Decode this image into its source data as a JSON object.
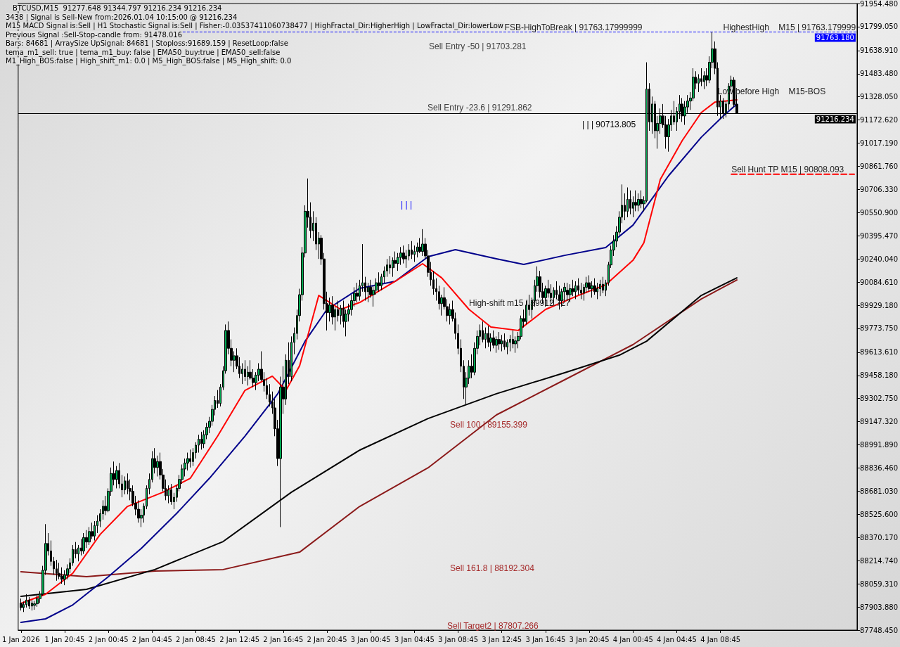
{
  "chart_data": {
    "type": "candlestick",
    "title": "BTCUSD,M15  91277.648 91344.797 91216.234 91216.234",
    "x": [
      "2026-01-01T16:45",
      "2026-01-01T17:00",
      "2026-01-01T17:15",
      "2026-01-01T17:30",
      "2026-01-01T17:45",
      "2026-01-01T18:00",
      "2026-01-01T18:15",
      "2026-01-01T18:30",
      "2026-01-01T18:45",
      "2026-01-01T19:00",
      "2026-01-01T19:15",
      "2026-01-01T19:30",
      "2026-01-01T19:45",
      "2026-01-01T20:00",
      "2026-01-01T20:15",
      "2026-01-01T20:30",
      "2026-01-01T20:45",
      "2026-01-01T21:00",
      "2026-01-01T21:15",
      "2026-01-01T21:30",
      "2026-01-01T21:45",
      "2026-01-01T22:00",
      "2026-01-01T22:15",
      "2026-01-01T22:30",
      "2026-01-01T22:45",
      "2026-01-01T23:00",
      "2026-01-01T23:15",
      "2026-01-01T23:30",
      "2026-01-01T23:45",
      "2026-01-02T00:00",
      "2026-01-02T00:15",
      "2026-01-02T00:30",
      "2026-01-02T00:45",
      "2026-01-02T01:00",
      "2026-01-02T01:15",
      "2026-01-02T01:30",
      "2026-01-02T01:45",
      "2026-01-02T02:00",
      "2026-01-02T02:15",
      "2026-01-02T02:30",
      "2026-01-02T02:45",
      "2026-01-02T03:00",
      "2026-01-02T03:15",
      "2026-01-02T03:30",
      "2026-01-02T03:45",
      "2026-01-02T04:00",
      "2026-01-02T04:15",
      "2026-01-02T04:30",
      "2026-01-02T04:45",
      "2026-01-02T05:00",
      "2026-01-02T05:15",
      "2026-01-02T05:30",
      "2026-01-02T05:45",
      "2026-01-02T06:00",
      "2026-01-02T06:15",
      "2026-01-02T06:30",
      "2026-01-02T06:45",
      "2026-01-02T07:00",
      "2026-01-02T07:15",
      "2026-01-02T07:30",
      "2026-01-02T07:45",
      "2026-01-02T08:00",
      "2026-01-02T08:15",
      "2026-01-02T08:30",
      "2026-01-02T08:45",
      "2026-01-02T09:00",
      "2026-01-02T09:15",
      "2026-01-02T09:30",
      "2026-01-02T09:45",
      "2026-01-02T10:00",
      "2026-01-02T10:15",
      "2026-01-02T10:30",
      "2026-01-02T10:45",
      "2026-01-02T11:00",
      "2026-01-02T11:15",
      "2026-01-02T11:30",
      "2026-01-02T11:45",
      "2026-01-02T12:00",
      "2026-01-02T12:15",
      "2026-01-02T12:30",
      "2026-01-02T12:45",
      "2026-01-02T13:00",
      "2026-01-02T13:15",
      "2026-01-02T13:30",
      "2026-01-02T13:45",
      "2026-01-02T14:00",
      "2026-01-02T14:15",
      "2026-01-02T14:30",
      "2026-01-02T14:45",
      "2026-01-02T15:00",
      "2026-01-02T15:15",
      "2026-01-02T15:30",
      "2026-01-02T15:45",
      "2026-01-02T16:00",
      "2026-01-02T16:15",
      "2026-01-02T16:30",
      "2026-01-02T16:45",
      "2026-01-02T17:00",
      "2026-01-02T17:15",
      "2026-01-02T17:30",
      "2026-01-02T17:45",
      "2026-01-02T18:00",
      "2026-01-02T18:15",
      "2026-01-02T18:30",
      "2026-01-02T18:45",
      "2026-01-02T19:00",
      "2026-01-02T19:15",
      "2026-01-02T19:30",
      "2026-01-02T19:45",
      "2026-01-02T20:00",
      "2026-01-02T20:15",
      "2026-01-02T20:30",
      "2026-01-02T20:45",
      "2026-01-02T21:00",
      "2026-01-02T21:15",
      "2026-01-02T21:30",
      "2026-01-02T21:45",
      "2026-01-02T22:00",
      "2026-01-02T22:15",
      "2026-01-02T22:30",
      "2026-01-02T22:45",
      "2026-01-02T23:00",
      "2026-01-02T23:15",
      "2026-01-02T23:30",
      "2026-01-02T23:45",
      "2026-01-03T00:00",
      "2026-01-03T00:15",
      "2026-01-03T00:30",
      "2026-01-03T00:45",
      "2026-01-03T01:00",
      "2026-01-03T01:15",
      "2026-01-03T01:30",
      "2026-01-03T01:45",
      "2026-01-03T02:00",
      "2026-01-03T02:15",
      "2026-01-03T02:30",
      "2026-01-03T02:45",
      "2026-01-03T03:00",
      "2026-01-03T03:15",
      "2026-01-03T03:30",
      "2026-01-03T03:45",
      "2026-01-03T04:00",
      "2026-01-03T04:15",
      "2026-01-03T04:30",
      "2026-01-03T04:45",
      "2026-01-03T05:00",
      "2026-01-03T05:15",
      "2026-01-03T05:30",
      "2026-01-03T05:45",
      "2026-01-03T06:00",
      "2026-01-03T06:15",
      "2026-01-03T06:30",
      "2026-01-03T06:45",
      "2026-01-03T07:00",
      "2026-01-03T07:15",
      "2026-01-03T07:30",
      "2026-01-03T07:45",
      "2026-01-03T08:00",
      "2026-01-03T08:15",
      "2026-01-03T08:30",
      "2026-01-03T08:45",
      "2026-01-03T09:00",
      "2026-01-03T09:15",
      "2026-01-03T09:30",
      "2026-01-03T09:45",
      "2026-01-03T10:00",
      "2026-01-03T10:15",
      "2026-01-03T10:30",
      "2026-01-03T10:45",
      "2026-01-03T11:00",
      "2026-01-03T11:15",
      "2026-01-03T11:30",
      "2026-01-03T11:45",
      "2026-01-03T12:00",
      "2026-01-03T12:15",
      "2026-01-03T12:30",
      "2026-01-03T12:45",
      "2026-01-03T13:00",
      "2026-01-03T13:15",
      "2026-01-03T13:30",
      "2026-01-03T13:45",
      "2026-01-03T14:00",
      "2026-01-03T14:15",
      "2026-01-03T14:30",
      "2026-01-03T14:45",
      "2026-01-03T15:00",
      "2026-01-03T15:15",
      "2026-01-03T15:30",
      "2026-01-03T15:45",
      "2026-01-03T16:00",
      "2026-01-03T16:15",
      "2026-01-03T16:30",
      "2026-01-03T16:45",
      "2026-01-03T17:00",
      "2026-01-03T17:15",
      "2026-01-03T17:30",
      "2026-01-03T17:45",
      "2026-01-03T18:00",
      "2026-01-03T18:15",
      "2026-01-03T18:30",
      "2026-01-03T18:45",
      "2026-01-03T19:00",
      "2026-01-03T19:15",
      "2026-01-03T19:30",
      "2026-01-03T19:45",
      "2026-01-03T20:00",
      "2026-01-03T20:15",
      "2026-01-03T20:30",
      "2026-01-03T20:45",
      "2026-01-03T21:00",
      "2026-01-03T21:15",
      "2026-01-03T21:30",
      "2026-01-03T21:45",
      "2026-01-03T22:00",
      "2026-01-03T22:15",
      "2026-01-03T22:30",
      "2026-01-03T22:45",
      "2026-01-03T23:00",
      "2026-01-03T23:15",
      "2026-01-03T23:30",
      "2026-01-03T23:45",
      "2026-01-04T00:00",
      "2026-01-04T00:15",
      "2026-01-04T00:30",
      "2026-01-04T00:45",
      "2026-01-04T01:00",
      "2026-01-04T01:15",
      "2026-01-04T01:30",
      "2026-01-04T01:45",
      "2026-01-04T02:00",
      "2026-01-04T02:15",
      "2026-01-04T02:30",
      "2026-01-04T02:45",
      "2026-01-04T03:00",
      "2026-01-04T03:15",
      "2026-01-04T03:30",
      "2026-01-04T03:45",
      "2026-01-04T04:00",
      "2026-01-04T04:15",
      "2026-01-04T04:30",
      "2026-01-04T04:45",
      "2026-01-04T05:00",
      "2026-01-04T05:15",
      "2026-01-04T05:30",
      "2026-01-04T05:45",
      "2026-01-04T06:00",
      "2026-01-04T06:15",
      "2026-01-04T06:30",
      "2026-01-04T06:45",
      "2026-01-04T07:00",
      "2026-01-04T07:15",
      "2026-01-04T07:30",
      "2026-01-04T07:45",
      "2026-01-04T08:00",
      "2026-01-04T08:15",
      "2026-01-04T08:30",
      "2026-01-04T08:45",
      "2026-01-04T09:00",
      "2026-01-04T09:15",
      "2026-01-04T09:30",
      "2026-01-04T09:45",
      "2026-01-04T10:00",
      "2026-01-04T10:15"
    ],
    "ohlc": [
      [
        87930,
        87960,
        87880,
        87900
      ],
      [
        87900,
        87940,
        87870,
        87920
      ],
      [
        87920,
        87990,
        87900,
        87950
      ],
      [
        87950,
        87970,
        87890,
        87910
      ],
      [
        87910,
        87950,
        87880,
        87930
      ],
      [
        87915,
        87945,
        87885,
        87925
      ],
      [
        87925,
        87980,
        87905,
        87960
      ],
      [
        87960,
        88010,
        87930,
        87990
      ],
      [
        87990,
        88180,
        87980,
        88150
      ],
      [
        88150,
        88460,
        88120,
        88330
      ],
      [
        88330,
        88400,
        88250,
        88280
      ],
      [
        88280,
        88350,
        88180,
        88210
      ],
      [
        88210,
        88240,
        88120,
        88160
      ],
      [
        88160,
        88220,
        88080,
        88130
      ],
      [
        88130,
        88200,
        88090,
        88110
      ],
      [
        88110,
        88170,
        88060,
        88090
      ],
      [
        88090,
        88150,
        88050,
        88120
      ],
      [
        88120,
        88190,
        88090,
        88160
      ],
      [
        88160,
        88230,
        88130,
        88200
      ],
      [
        88200,
        88320,
        88180,
        88290
      ],
      [
        88290,
        88340,
        88230,
        88260
      ],
      [
        88260,
        88320,
        88210,
        88300
      ],
      [
        88300,
        88360,
        88250,
        88280
      ],
      [
        88280,
        88400,
        88260,
        88370
      ],
      [
        88370,
        88420,
        88300,
        88340
      ],
      [
        88340,
        88440,
        88320,
        88410
      ],
      [
        88410,
        88470,
        88360,
        88380
      ],
      [
        88380,
        88480,
        88350,
        88450
      ],
      [
        88450,
        88520,
        88400,
        88480
      ],
      [
        88480,
        88560,
        88440,
        88530
      ],
      [
        88530,
        88620,
        88490,
        88580
      ],
      [
        88580,
        88650,
        88520,
        88550
      ],
      [
        88550,
        88700,
        88540,
        88680
      ],
      [
        88680,
        88840,
        88650,
        88800
      ],
      [
        88800,
        88880,
        88720,
        88760
      ],
      [
        88760,
        88850,
        88700,
        88820
      ],
      [
        88820,
        88870,
        88700,
        88730
      ],
      [
        88730,
        88790,
        88640,
        88690
      ],
      [
        88690,
        88780,
        88660,
        88750
      ],
      [
        88750,
        88800,
        88660,
        88700
      ],
      [
        88700,
        88760,
        88620,
        88680
      ],
      [
        88680,
        88720,
        88580,
        88600
      ],
      [
        88600,
        88650,
        88520,
        88560
      ],
      [
        88560,
        88620,
        88470,
        88500
      ],
      [
        88500,
        88560,
        88440,
        88520
      ],
      [
        88520,
        88600,
        88470,
        88580
      ],
      [
        88580,
        88720,
        88560,
        88700
      ],
      [
        88700,
        88800,
        88660,
        88760
      ],
      [
        88760,
        88950,
        88740,
        88900
      ],
      [
        88900,
        88970,
        88800,
        88840
      ],
      [
        88840,
        88920,
        88780,
        88880
      ],
      [
        88880,
        88940,
        88760,
        88790
      ],
      [
        88790,
        88830,
        88680,
        88700
      ],
      [
        88700,
        88760,
        88620,
        88650
      ],
      [
        88650,
        88720,
        88600,
        88690
      ],
      [
        88690,
        88730,
        88590,
        88610
      ],
      [
        88610,
        88670,
        88560,
        88640
      ],
      [
        88640,
        88720,
        88610,
        88700
      ],
      [
        88700,
        88790,
        88680,
        88760
      ],
      [
        88760,
        88860,
        88730,
        88830
      ],
      [
        88830,
        88900,
        88780,
        88870
      ],
      [
        88870,
        88940,
        88820,
        88900
      ],
      [
        88900,
        88960,
        88840,
        88880
      ],
      [
        88880,
        88970,
        88850,
        88940
      ],
      [
        88940,
        89010,
        88900,
        88990
      ],
      [
        88990,
        89060,
        88940,
        89030
      ],
      [
        89030,
        89080,
        88960,
        89000
      ],
      [
        89000,
        89090,
        88970,
        89060
      ],
      [
        89060,
        89140,
        89030,
        89110
      ],
      [
        89110,
        89180,
        89070,
        89150
      ],
      [
        89150,
        89260,
        89120,
        89230
      ],
      [
        89230,
        89320,
        89190,
        89290
      ],
      [
        89290,
        89360,
        89240,
        89270
      ],
      [
        89270,
        89400,
        89250,
        89380
      ],
      [
        89380,
        89520,
        89360,
        89490
      ],
      [
        89490,
        89800,
        89470,
        89760
      ],
      [
        89760,
        89820,
        89600,
        89640
      ],
      [
        89640,
        89700,
        89520,
        89560
      ],
      [
        89560,
        89620,
        89480,
        89590
      ],
      [
        89590,
        89640,
        89500,
        89520
      ],
      [
        89520,
        89580,
        89440,
        89470
      ],
      [
        89470,
        89540,
        89400,
        89500
      ],
      [
        89500,
        89560,
        89420,
        89450
      ],
      [
        89450,
        89520,
        89390,
        89480
      ],
      [
        89480,
        89560,
        89430,
        89440
      ],
      [
        89440,
        89500,
        89380,
        89410
      ],
      [
        89410,
        89480,
        89360,
        89460
      ],
      [
        89460,
        89540,
        89420,
        89500
      ],
      [
        89500,
        89620,
        89420,
        89430
      ],
      [
        89430,
        89480,
        89350,
        89390
      ],
      [
        89390,
        89440,
        89300,
        89330
      ],
      [
        89330,
        89400,
        89250,
        89280
      ],
      [
        89280,
        89350,
        89200,
        89240
      ],
      [
        89240,
        89300,
        89050,
        89100
      ],
      [
        89100,
        89160,
        88850,
        88900
      ],
      [
        88900,
        89450,
        88440,
        89380
      ],
      [
        89380,
        89520,
        89200,
        89300
      ],
      [
        89300,
        89600,
        89260,
        89560
      ],
      [
        89560,
        89680,
        89400,
        89450
      ],
      [
        89450,
        89720,
        89420,
        89680
      ],
      [
        89680,
        89780,
        89600,
        89740
      ],
      [
        89740,
        89900,
        89700,
        89860
      ],
      [
        89860,
        90040,
        89820,
        90000
      ],
      [
        90000,
        90320,
        89960,
        90280
      ],
      [
        90280,
        90600,
        90250,
        90560
      ],
      [
        90560,
        90780,
        90450,
        90520
      ],
      [
        90520,
        90620,
        90380,
        90430
      ],
      [
        90430,
        90560,
        90360,
        90480
      ],
      [
        90480,
        90520,
        90300,
        90340
      ],
      [
        90340,
        90420,
        90240,
        90380
      ],
      [
        90380,
        90400,
        90200,
        90240
      ],
      [
        90240,
        90280,
        89900,
        89940
      ],
      [
        89940,
        90020,
        89760,
        89880
      ],
      [
        89880,
        89980,
        89820,
        89930
      ],
      [
        89930,
        89990,
        89800,
        89850
      ],
      [
        89850,
        89920,
        89760,
        89900
      ],
      [
        89900,
        89960,
        89820,
        89860
      ],
      [
        89860,
        89930,
        89800,
        89910
      ],
      [
        89910,
        89960,
        89780,
        89820
      ],
      [
        89820,
        89900,
        89720,
        89870
      ],
      [
        89870,
        89940,
        89820,
        89900
      ],
      [
        89900,
        90000,
        89860,
        89960
      ],
      [
        89960,
        90050,
        89920,
        90010
      ],
      [
        90010,
        90080,
        89950,
        89990
      ],
      [
        89990,
        90100,
        89960,
        90060
      ],
      [
        90060,
        90340,
        90020,
        90080
      ],
      [
        90080,
        90120,
        89960,
        90020
      ],
      [
        90020,
        90080,
        89950,
        90050
      ],
      [
        90050,
        90100,
        89980,
        90000
      ],
      [
        90000,
        90060,
        89920,
        90030
      ],
      [
        90030,
        90110,
        90000,
        90080
      ],
      [
        90080,
        90150,
        90020,
        90060
      ],
      [
        90060,
        90140,
        90030,
        90120
      ],
      [
        90120,
        90190,
        90080,
        90160
      ],
      [
        90160,
        90240,
        90120,
        90200
      ],
      [
        90200,
        90260,
        90140,
        90180
      ],
      [
        90180,
        90250,
        90120,
        90230
      ],
      [
        90230,
        90290,
        90180,
        90210
      ],
      [
        90210,
        90280,
        90160,
        90250
      ],
      [
        90250,
        90320,
        90200,
        90280
      ],
      [
        90280,
        90330,
        90210,
        90240
      ],
      [
        90240,
        90300,
        90180,
        90260
      ],
      [
        90260,
        90340,
        90230,
        90300
      ],
      [
        90300,
        90360,
        90240,
        90270
      ],
      [
        90270,
        90330,
        90220,
        90290
      ],
      [
        90290,
        90350,
        90250,
        90320
      ],
      [
        90320,
        90380,
        90280,
        90290
      ],
      [
        90290,
        90440,
        90260,
        90340
      ],
      [
        90340,
        90380,
        90240,
        90260
      ],
      [
        90260,
        90300,
        90120,
        90150
      ],
      [
        90150,
        90220,
        90060,
        90100
      ],
      [
        90100,
        90160,
        90000,
        90040
      ],
      [
        90040,
        90110,
        89960,
        90020
      ],
      [
        90020,
        90060,
        89900,
        89940
      ],
      [
        89940,
        90000,
        89860,
        89980
      ],
      [
        89980,
        90050,
        89900,
        89920
      ],
      [
        89920,
        89970,
        89820,
        89860
      ],
      [
        89860,
        89940,
        89800,
        89900
      ],
      [
        89900,
        89960,
        89820,
        89840
      ],
      [
        89840,
        89880,
        89700,
        89740
      ],
      [
        89740,
        89800,
        89600,
        89640
      ],
      [
        89640,
        89700,
        89480,
        89520
      ],
      [
        89520,
        89560,
        89300,
        89380
      ],
      [
        89380,
        89480,
        89260,
        89440
      ],
      [
        89440,
        89560,
        89400,
        89520
      ],
      [
        89520,
        89600,
        89440,
        89480
      ],
      [
        89480,
        89680,
        89460,
        89640
      ],
      [
        89640,
        89760,
        89600,
        89720
      ],
      [
        89720,
        89800,
        89660,
        89760
      ],
      [
        89760,
        89820,
        89680,
        89700
      ],
      [
        89700,
        89780,
        89640,
        89740
      ],
      [
        89740,
        89790,
        89650,
        89680
      ],
      [
        89680,
        89740,
        89620,
        89710
      ],
      [
        89710,
        89760,
        89640,
        89660
      ],
      [
        89660,
        89720,
        89610,
        89700
      ],
      [
        89700,
        89750,
        89630,
        89670
      ],
      [
        89670,
        89730,
        89620,
        89690
      ],
      [
        89690,
        89740,
        89630,
        89650
      ],
      [
        89650,
        89700,
        89600,
        89680
      ],
      [
        89680,
        89730,
        89620,
        89700
      ],
      [
        89700,
        89760,
        89640,
        89670
      ],
      [
        89670,
        89720,
        89610,
        89690
      ],
      [
        89690,
        89750,
        89640,
        89720
      ],
      [
        89720,
        89860,
        89700,
        89840
      ],
      [
        89840,
        89900,
        89780,
        89820
      ],
      [
        89820,
        89960,
        89800,
        89930
      ],
      [
        89930,
        90000,
        89860,
        89900
      ],
      [
        89900,
        89980,
        89840,
        89960
      ],
      [
        89960,
        90100,
        89920,
        90060
      ],
      [
        90060,
        90190,
        90020,
        90120
      ],
      [
        90120,
        90160,
        89980,
        90020
      ],
      [
        90020,
        90080,
        89940,
        89980
      ],
      [
        89980,
        90060,
        89920,
        90040
      ],
      [
        90040,
        90100,
        89980,
        90010
      ],
      [
        90010,
        90070,
        89940,
        89980
      ],
      [
        89980,
        90050,
        89930,
        90030
      ],
      [
        90030,
        90090,
        89970,
        90000
      ],
      [
        90000,
        90060,
        89900,
        89960
      ],
      [
        89960,
        90040,
        89920,
        90020
      ],
      [
        90020,
        90080,
        89960,
        90050
      ],
      [
        90030,
        90080,
        89960,
        90000
      ],
      [
        90000,
        90070,
        89950,
        90040
      ],
      [
        90040,
        90100,
        89990,
        90020
      ],
      [
        90020,
        90090,
        89970,
        90060
      ],
      [
        90060,
        90110,
        90000,
        90030
      ],
      [
        90030,
        90080,
        89970,
        90010
      ],
      [
        90010,
        90070,
        89960,
        90050
      ],
      [
        90050,
        90120,
        90010,
        90080
      ],
      [
        90080,
        90130,
        90020,
        90040
      ],
      [
        90040,
        90090,
        89980,
        90060
      ],
      [
        90060,
        90110,
        90000,
        90020
      ],
      [
        90020,
        90080,
        89970,
        90040
      ],
      [
        90040,
        90100,
        89990,
        90070
      ],
      [
        90070,
        90120,
        90010,
        90030
      ],
      [
        90030,
        90100,
        89990,
        90080
      ],
      [
        90080,
        90220,
        90060,
        90200
      ],
      [
        90200,
        90330,
        90180,
        90300
      ],
      [
        90300,
        90400,
        90260,
        90360
      ],
      [
        90360,
        90460,
        90320,
        90420
      ],
      [
        90420,
        90560,
        90400,
        90520
      ],
      [
        90520,
        90740,
        90480,
        90600
      ],
      [
        90600,
        90680,
        90500,
        90560
      ],
      [
        90560,
        90720,
        90520,
        90640
      ],
      [
        90640,
        90700,
        90540,
        90580
      ],
      [
        90580,
        90660,
        90520,
        90620
      ],
      [
        90620,
        90700,
        90560,
        90600
      ],
      [
        90600,
        90680,
        90560,
        90640
      ],
      [
        90640,
        90700,
        90580,
        90610
      ],
      [
        90610,
        90660,
        90560,
        90630
      ],
      [
        90630,
        91560,
        90620,
        91380
      ],
      [
        91380,
        91420,
        91100,
        91160
      ],
      [
        91160,
        91330,
        91080,
        91280
      ],
      [
        91280,
        91300,
        91050,
        91100
      ],
      [
        91100,
        91200,
        90980,
        91150
      ],
      [
        91150,
        91250,
        91080,
        91200
      ],
      [
        91200,
        91280,
        91120,
        91140
      ],
      [
        91140,
        91200,
        90980,
        91060
      ],
      [
        91060,
        91180,
        90960,
        91140
      ],
      [
        91140,
        91240,
        91100,
        91200
      ],
      [
        91200,
        91300,
        91140,
        91160
      ],
      [
        91160,
        91260,
        91100,
        91230
      ],
      [
        91230,
        91340,
        91180,
        91280
      ],
      [
        91280,
        91320,
        91160,
        91200
      ],
      [
        91200,
        91300,
        91140,
        91260
      ],
      [
        91260,
        91340,
        91220,
        91300
      ],
      [
        91300,
        91360,
        91240,
        91320
      ],
      [
        91320,
        91520,
        91300,
        91460
      ],
      [
        91460,
        91500,
        91380,
        91420
      ],
      [
        91420,
        91480,
        91360,
        91450
      ],
      [
        91450,
        91520,
        91400,
        91430
      ],
      [
        91430,
        91500,
        91380,
        91470
      ],
      [
        91470,
        91520,
        91400,
        91440
      ],
      [
        91440,
        91600,
        91420,
        91560
      ],
      [
        91560,
        91763.18,
        91520,
        91650
      ],
      [
        91650,
        91700,
        91480,
        91520
      ],
      [
        91520,
        91560,
        91200,
        91260
      ],
      [
        91260,
        91340,
        91180,
        91300
      ],
      [
        91300,
        91320,
        91180,
        91220
      ],
      [
        91220,
        91300,
        91190,
        91280
      ],
      [
        91280,
        91420,
        91240,
        91400
      ],
      [
        91400,
        91470,
        91360,
        91440
      ],
      [
        91440,
        91460,
        91260,
        91277.648
      ],
      [
        91277.648,
        91344.797,
        91216.234,
        91216.234
      ]
    ],
    "series": [
      {
        "type": "line",
        "color": "#8b1a1a",
        "x": [
          "2026-01-01T16:45",
          "2026-01-01T22:45",
          "2026-01-02T05:00",
          "2026-01-02T11:15",
          "2026-01-02T18:15",
          "2026-01-02T23:45",
          "2026-01-03T06:00",
          "2026-01-03T12:15",
          "2026-01-03T18:30",
          "2026-01-04T00:45",
          "2026-01-04T07:00",
          "2026-01-04T10:15"
        ],
        "values": [
          88140,
          88107,
          88145,
          88155,
          88272,
          88579,
          88838,
          89193,
          89429,
          89665,
          89971,
          90099
        ]
      },
      {
        "type": "line",
        "color": "#000000",
        "x": [
          "2026-01-01T16:45",
          "2026-01-01T22:45",
          "2026-01-02T05:00",
          "2026-01-02T11:15",
          "2026-01-02T17:30",
          "2026-01-02T23:45",
          "2026-01-03T06:00",
          "2026-01-03T12:15",
          "2026-01-03T18:30",
          "2026-01-03T23:30",
          "2026-01-04T02:00",
          "2026-01-04T07:00",
          "2026-01-04T10:15"
        ],
        "values": [
          87975,
          88022,
          88155,
          88343,
          88674,
          88957,
          89169,
          89335,
          89476,
          89594,
          89688,
          89995,
          90113
        ]
      },
      {
        "type": "line",
        "color": "#00008b",
        "x": [
          "2026-01-01T16:45",
          "2026-01-01T19:00",
          "2026-01-01T21:30",
          "2026-01-02T00:45",
          "2026-01-02T03:45",
          "2026-01-02T07:00",
          "2026-01-02T10:00",
          "2026-01-02T13:15",
          "2026-01-02T16:15",
          "2026-01-02T18:45",
          "2026-01-02T20:45",
          "2026-01-02T23:45",
          "2026-01-03T03:00",
          "2026-01-03T06:00",
          "2026-01-03T08:30",
          "2026-01-03T12:15",
          "2026-01-03T14:45",
          "2026-01-03T18:30",
          "2026-01-03T22:15",
          "2026-01-04T00:45",
          "2026-01-04T04:00",
          "2026-01-04T07:00",
          "2026-01-04T09:00",
          "2026-01-04T10:15"
        ],
        "values": [
          87800,
          87824,
          87918,
          88107,
          88296,
          88532,
          88768,
          89051,
          89335,
          89688,
          89901,
          90043,
          90090,
          90255,
          90302,
          90241,
          90203,
          90264,
          90316,
          90467,
          90798,
          91057,
          91199,
          91279
        ]
      },
      {
        "type": "line",
        "color": "#ff0000",
        "x": [
          "2026-01-01T16:45",
          "2026-01-01T19:00",
          "2026-01-01T21:30",
          "2026-01-02T00:00",
          "2026-01-02T02:30",
          "2026-01-02T05:45",
          "2026-01-02T08:15",
          "2026-01-02T10:45",
          "2026-01-02T13:15",
          "2026-01-02T15:45",
          "2026-01-02T17:00",
          "2026-01-02T18:15",
          "2026-01-02T20:00",
          "2026-01-02T22:00",
          "2026-01-02T23:45",
          "2026-01-03T03:00",
          "2026-01-03T05:30",
          "2026-01-03T07:15",
          "2026-01-03T09:45",
          "2026-01-03T11:45",
          "2026-01-03T14:15",
          "2026-01-03T16:45",
          "2026-01-03T19:45",
          "2026-01-03T22:15",
          "2026-01-04T00:45",
          "2026-01-04T01:45",
          "2026-01-04T03:15",
          "2026-01-04T05:15",
          "2026-01-04T07:00",
          "2026-01-04T08:15",
          "2026-01-04T10:15"
        ],
        "values": [
          87928,
          87989,
          88131,
          88391,
          88579,
          88674,
          88768,
          89051,
          89358,
          89453,
          89358,
          89523,
          89995,
          89901,
          89948,
          90090,
          90208,
          90113,
          89901,
          89783,
          89760,
          89901,
          89995,
          90066,
          90231,
          90349,
          90774,
          91034,
          91223,
          91293,
          91308
        ]
      },
      {
        "type": "line",
        "color": "#ff0000",
        "line_style": "dashed",
        "x": [
          "2026-01-04T09:45",
          "2026-01-04T21:00"
        ],
        "values": [
          90808.093,
          90808.093
        ]
      }
    ],
    "marker": "none",
    "ref_lines": [
      {
        "axis": "y",
        "value": 91763.18,
        "label": "91763.180",
        "color": "#0000ff",
        "line_style": "dashed"
      },
      {
        "axis": "y",
        "value": 91216.234,
        "label": "91216.234",
        "color": "#000000",
        "line_style": "solid"
      }
    ],
    "annotations": [
      "3438 | Signal is Sell-New from:2026.01.04 10:15:00 @ 91216.234",
      "M15 MACD Signal is:Sell | H1 Stochastic Signal is:Sell | Fisher:-0.03537411060738477 | HighFractal_Dir:HigherHigh | LowFractal_Dir:lowerLow",
      "Previous Signal :Sell-Stop-candle from: 91478.016",
      "Bars: 84681 | ArraySize UpSignal: 84681 | Stoploss:91689.159 | ResetLoop:false",
      "tema_m1_sell: true | tema_m1_buy: false | EMA50_buy:true | EMA50_sell:false",
      "M1_High_BOS:false | High_shift_m1: 0.0 | M5_High_BOS:false | M5_High_shift: 0.0",
      "Sell Entry -50 | 91703.281",
      "Sell Entry -23.6 | 91291.862",
      "Sell 100 | 89155.399",
      "Sell 161.8 | 88192.304",
      "Sell Target2 | 87807.266",
      "| | | 90713.805",
      "| | |",
      {
        "text": "FSB-HighToBreak | 91763.17999999",
        "x": "2026-01-03T13:00",
        "y": 91763.18
      },
      {
        "text": "Sell Hunt TP M15 | 90808.093",
        "x": "2026-01-04T09:45",
        "y": 90808.093
      },
      {
        "text": "HighestHigh    M15 | 91763.179999",
        "x": "2026-01-04T09:00",
        "y": 91763.18
      },
      {
        "text": "Low before High    M15-BOS",
        "x": "2026-01-04T08:30",
        "y": 91330
      },
      {
        "text": "High-shift m15 | 89912.727",
        "x": "2026-01-03T09:45",
        "y": 89912.727
      }
    ],
    "xlim": [
      "2026-01-01T16:30",
      "2026-01-04T21:15"
    ],
    "xticks": [
      {
        "value": "2026-01-01T16:45",
        "label": "1 Jan 2026"
      },
      {
        "value": "2026-01-01T20:45",
        "label": "1 Jan 20:45"
      },
      {
        "value": "2026-01-02T00:45",
        "label": "2 Jan 00:45"
      },
      {
        "value": "2026-01-02T04:45",
        "label": "2 Jan 04:45"
      },
      {
        "value": "2026-01-02T08:45",
        "label": "2 Jan 08:45"
      },
      {
        "value": "2026-01-02T12:45",
        "label": "2 Jan 12:45"
      },
      {
        "value": "2026-01-02T16:45",
        "label": "2 Jan 16:45"
      },
      {
        "value": "2026-01-02T20:45",
        "label": "2 Jan 20:45"
      },
      {
        "value": "2026-01-03T00:45",
        "label": "3 Jan 00:45"
      },
      {
        "value": "2026-01-03T04:45",
        "label": "3 Jan 04:45"
      },
      {
        "value": "2026-01-03T08:45",
        "label": "3 Jan 08:45"
      },
      {
        "value": "2026-01-03T12:45",
        "label": "3 Jan 12:45"
      },
      {
        "value": "2026-01-03T16:45",
        "label": "3 Jan 16:45"
      },
      {
        "value": "2026-01-03T20:45",
        "label": "3 Jan 20:45"
      },
      {
        "value": "2026-01-04T00:45",
        "label": "4 Jan 00:45"
      },
      {
        "value": "2026-01-04T04:45",
        "label": "4 Jan 04:45"
      },
      {
        "value": "2026-01-04T08:45",
        "label": "4 Jan 08:45"
      }
    ],
    "ylim": [
      87748.45,
      91954.48
    ],
    "yticks": [
      {
        "value": 87748.45,
        "label": "87748.450"
      },
      {
        "value": 87903.88,
        "label": "87903.880"
      },
      {
        "value": 88059.31,
        "label": "88059.310"
      },
      {
        "value": 88214.74,
        "label": "88214.740"
      },
      {
        "value": 88370.17,
        "label": "88370.170"
      },
      {
        "value": 88525.6,
        "label": "88525.600"
      },
      {
        "value": 88681.03,
        "label": "88681.030"
      },
      {
        "value": 88836.46,
        "label": "88836.460"
      },
      {
        "value": 88991.89,
        "label": "88991.890"
      },
      {
        "value": 89147.32,
        "label": "89147.320"
      },
      {
        "value": 89302.75,
        "label": "89302.750"
      },
      {
        "value": 89458.18,
        "label": "89458.180"
      },
      {
        "value": 89613.61,
        "label": "89613.610"
      },
      {
        "value": 89773.75,
        "label": "89773.750"
      },
      {
        "value": 89929.18,
        "label": "89929.180"
      },
      {
        "value": 90084.61,
        "label": "90084.610"
      },
      {
        "value": 90240.04,
        "label": "90240.040"
      },
      {
        "value": 90395.47,
        "label": "90395.470"
      },
      {
        "value": 90550.9,
        "label": "90550.900"
      },
      {
        "value": 90706.33,
        "label": "90706.330"
      },
      {
        "value": 90861.76,
        "label": "90861.760"
      },
      {
        "value": 91017.19,
        "label": "91017.190"
      },
      {
        "value": 91172.62,
        "label": "91172.620"
      },
      {
        "value": 91328.05,
        "label": "91328.050"
      },
      {
        "value": 91483.48,
        "label": "91483.480"
      },
      {
        "value": 91638.91,
        "label": "91638.910"
      },
      {
        "value": 91799.05,
        "label": "91799.050"
      },
      {
        "value": 91954.48,
        "label": "91954.480"
      }
    ],
    "grid": false
  }
}
